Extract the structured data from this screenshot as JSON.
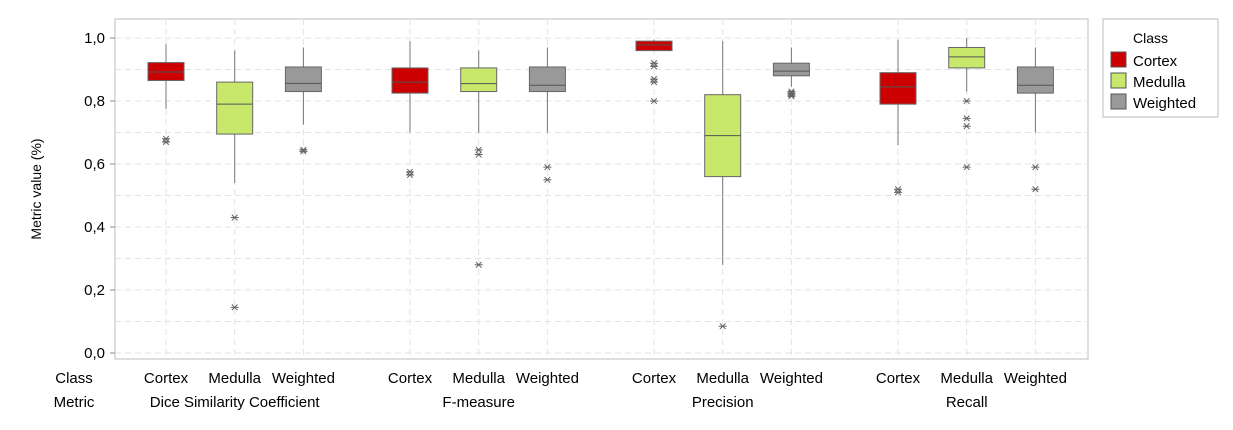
{
  "chart_data": {
    "type": "boxplot",
    "ylabel": "Metric value (%)",
    "ylim": [
      0,
      1.05
    ],
    "yticks": [
      0.0,
      0.2,
      0.4,
      0.6,
      0.8,
      1.0
    ],
    "ytick_labels": [
      "0,0",
      "0,2",
      "0,4",
      "0,6",
      "0,8",
      "1,0"
    ],
    "grid": true,
    "row_labels": {
      "class": "Class",
      "metric": "Metric"
    },
    "classes": [
      {
        "name": "Cortex",
        "color": "#cc0000"
      },
      {
        "name": "Medulla",
        "color": "#c8e86c"
      },
      {
        "name": "Weighted",
        "color": "#999999"
      }
    ],
    "legend": {
      "title": "Class",
      "position": "right",
      "entries": [
        "Cortex",
        "Medulla",
        "Weighted"
      ]
    },
    "groups": [
      {
        "metric": "Dice Similarity Coefficient",
        "boxes": [
          {
            "class": "Cortex",
            "whisker_low": 0.775,
            "q1": 0.865,
            "median": 0.892,
            "q3": 0.922,
            "whisker_high": 0.98,
            "outliers": [
              0.68,
              0.67
            ]
          },
          {
            "class": "Medulla",
            "whisker_low": 0.54,
            "q1": 0.695,
            "median": 0.79,
            "q3": 0.86,
            "whisker_high": 0.96,
            "outliers": [
              0.43,
              0.145
            ]
          },
          {
            "class": "Weighted",
            "whisker_low": 0.725,
            "q1": 0.83,
            "median": 0.856,
            "q3": 0.908,
            "whisker_high": 0.97,
            "outliers": [
              0.645,
              0.64
            ]
          }
        ]
      },
      {
        "metric": "F-measure",
        "boxes": [
          {
            "class": "Cortex",
            "whisker_low": 0.7,
            "q1": 0.825,
            "median": 0.86,
            "q3": 0.905,
            "whisker_high": 0.99,
            "outliers": [
              0.575,
              0.565
            ]
          },
          {
            "class": "Medulla",
            "whisker_low": 0.7,
            "q1": 0.83,
            "median": 0.855,
            "q3": 0.905,
            "whisker_high": 0.96,
            "outliers": [
              0.645,
              0.63,
              0.28
            ]
          },
          {
            "class": "Weighted",
            "whisker_low": 0.7,
            "q1": 0.83,
            "median": 0.85,
            "q3": 0.908,
            "whisker_high": 0.97,
            "outliers": [
              0.59,
              0.55
            ]
          }
        ]
      },
      {
        "metric": "Precision",
        "boxes": [
          {
            "class": "Cortex",
            "whisker_low": 0.96,
            "q1": 0.96,
            "median": 0.978,
            "q3": 0.99,
            "whisker_high": 0.995,
            "outliers": [
              0.92,
              0.91,
              0.87,
              0.86,
              0.8
            ]
          },
          {
            "class": "Medulla",
            "whisker_low": 0.28,
            "q1": 0.56,
            "median": 0.69,
            "q3": 0.82,
            "whisker_high": 0.99,
            "outliers": [
              0.085
            ]
          },
          {
            "class": "Weighted",
            "whisker_low": 0.845,
            "q1": 0.88,
            "median": 0.895,
            "q3": 0.92,
            "whisker_high": 0.97,
            "outliers": [
              0.83,
              0.825,
              0.82,
              0.815
            ]
          }
        ]
      },
      {
        "metric": "Recall",
        "boxes": [
          {
            "class": "Cortex",
            "whisker_low": 0.66,
            "q1": 0.79,
            "median": 0.845,
            "q3": 0.89,
            "whisker_high": 0.995,
            "outliers": [
              0.52,
              0.51
            ]
          },
          {
            "class": "Medulla",
            "whisker_low": 0.83,
            "q1": 0.905,
            "median": 0.94,
            "q3": 0.97,
            "whisker_high": 1.0,
            "outliers": [
              0.8,
              0.745,
              0.72,
              0.59
            ]
          },
          {
            "class": "Weighted",
            "whisker_low": 0.7,
            "q1": 0.825,
            "median": 0.85,
            "q3": 0.908,
            "whisker_high": 0.97,
            "outliers": [
              0.59,
              0.52
            ]
          }
        ]
      }
    ]
  }
}
